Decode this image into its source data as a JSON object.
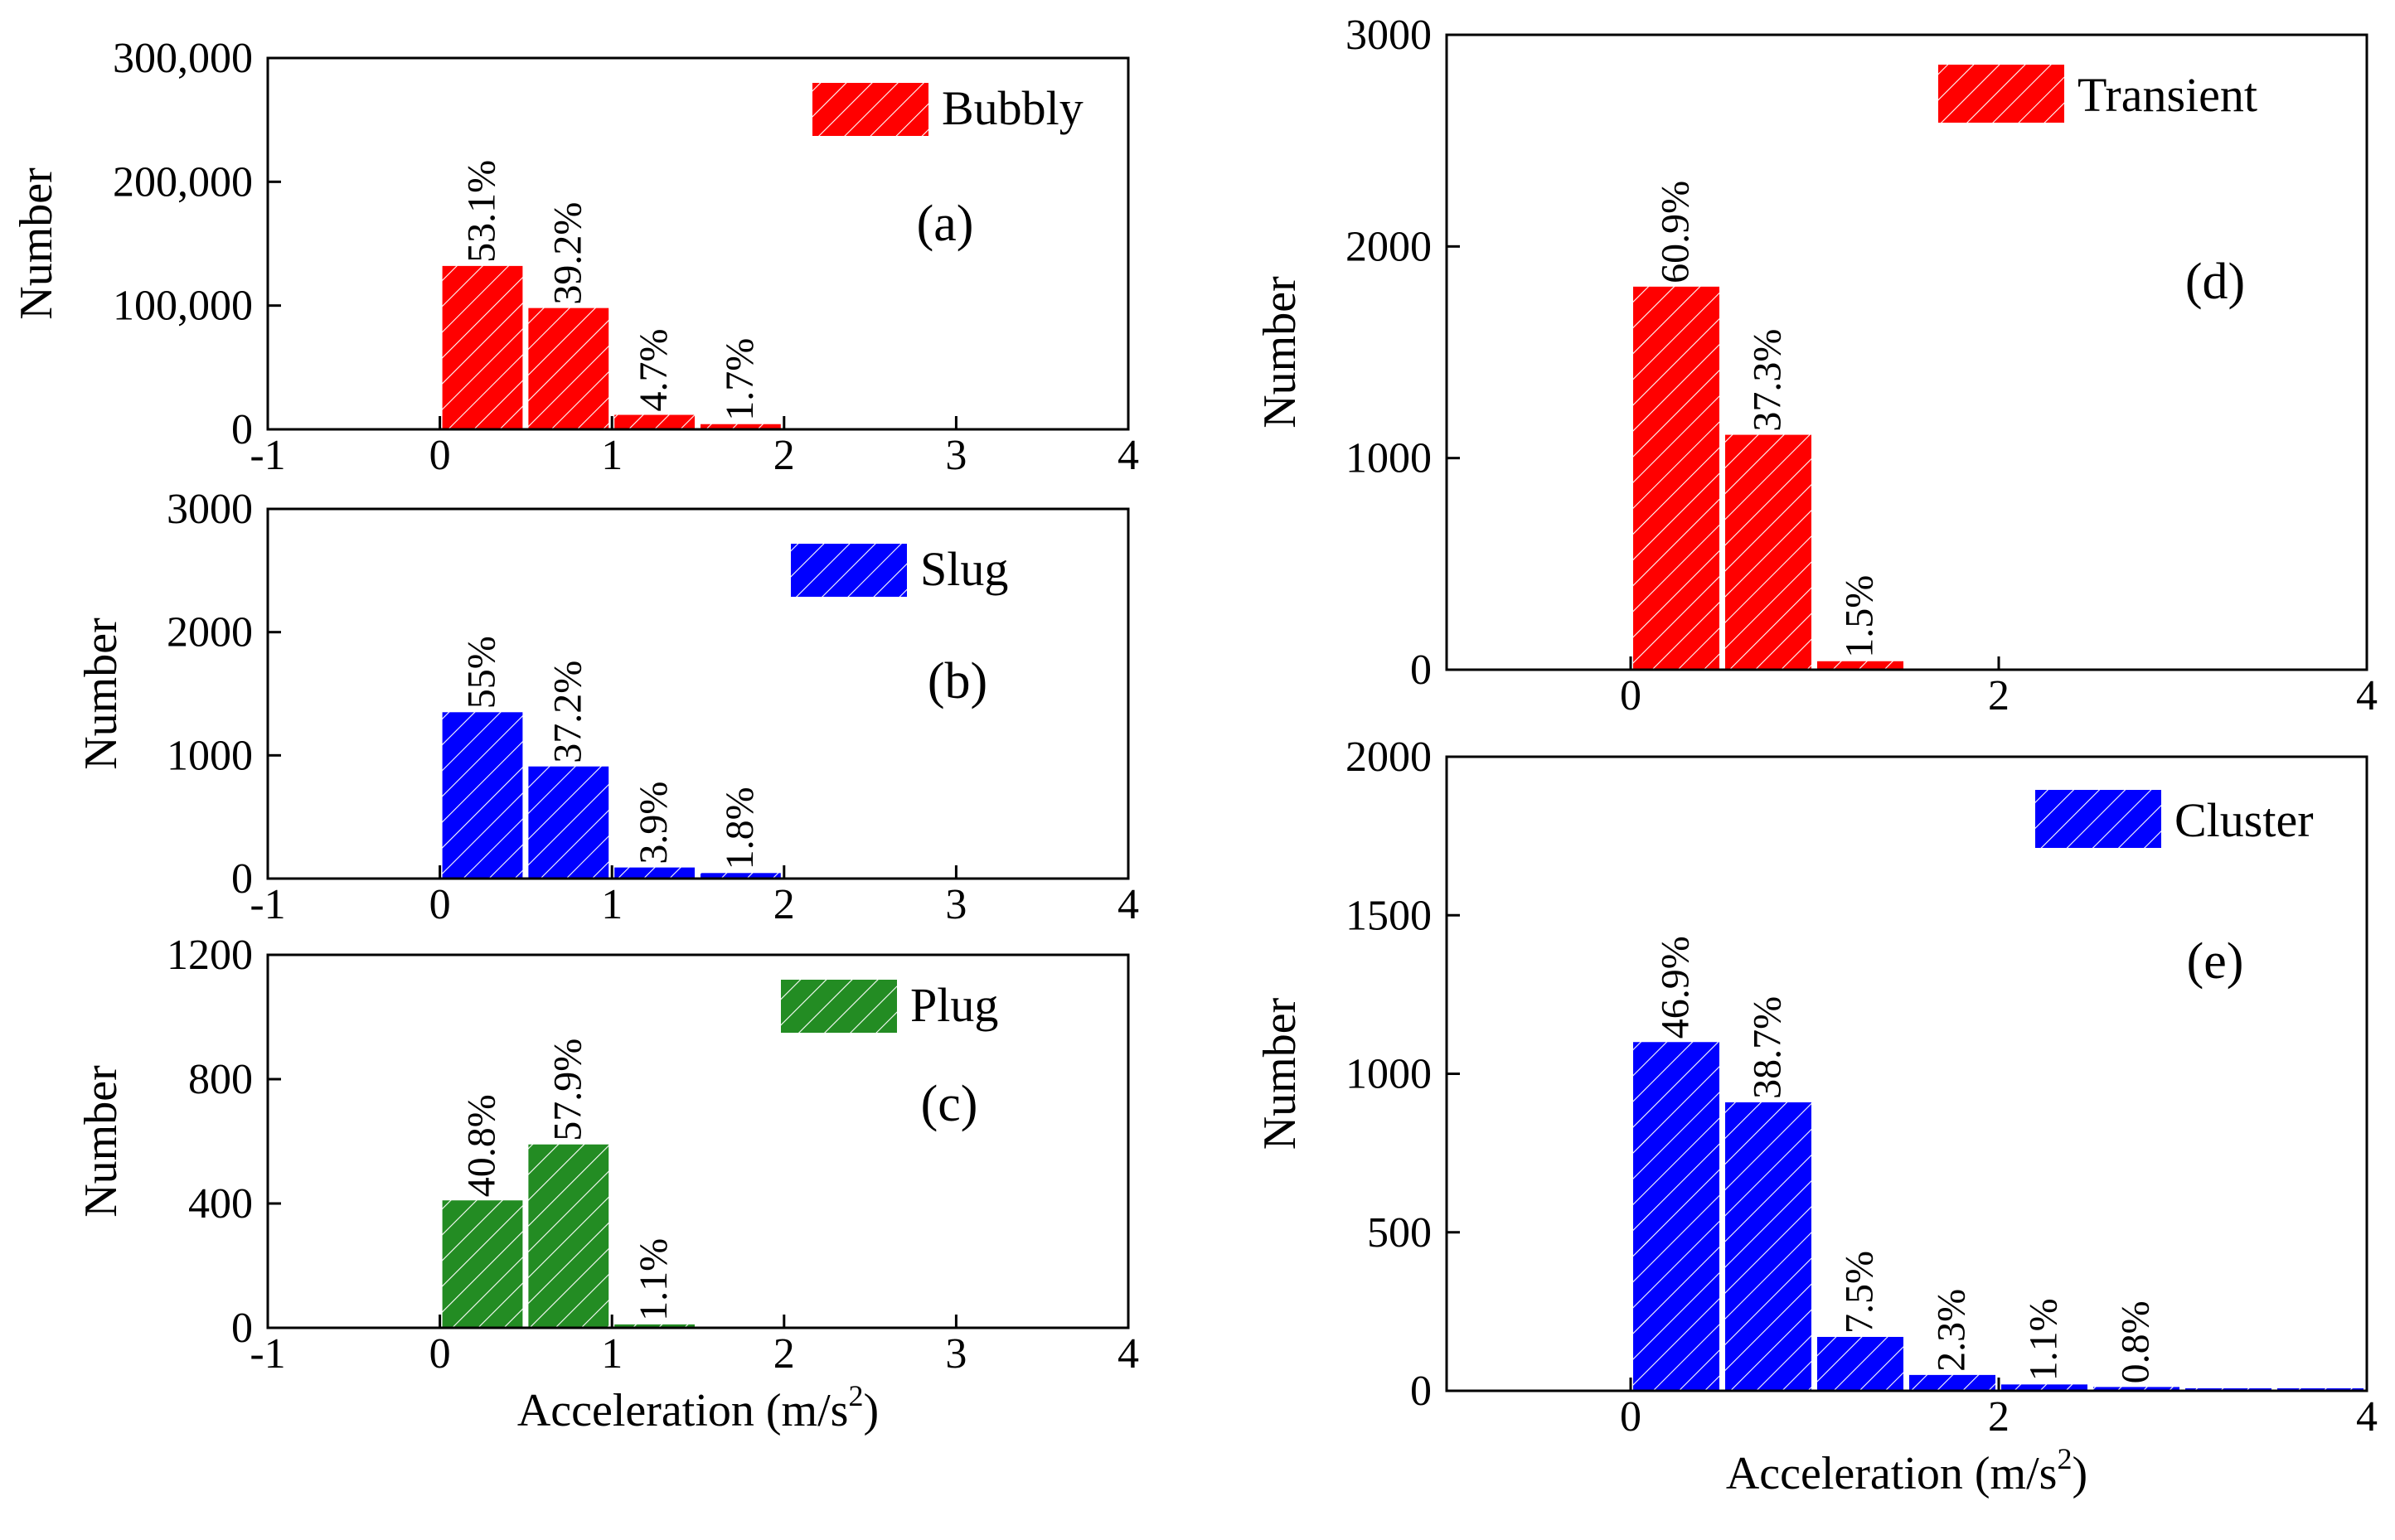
{
  "chart_data": [
    {
      "id": "a",
      "type": "bar",
      "panel_label": "(a)",
      "legend": "Bubbly",
      "color": "#ff0000",
      "ylabel": "Number",
      "xlabel": "",
      "xlim": [
        -1,
        4
      ],
      "ylim": [
        0,
        300000
      ],
      "xticks": [
        -1,
        0,
        1,
        2,
        3,
        4
      ],
      "xtick_labels": [
        "-1",
        "0",
        "1",
        "2",
        "3",
        "4"
      ],
      "yticks": [
        0,
        100000,
        200000,
        300000
      ],
      "ytick_labels": [
        "0",
        "100,000",
        "200,000",
        "300,000"
      ],
      "bins": [
        [
          0,
          0.5
        ],
        [
          0.5,
          1.0
        ],
        [
          1.0,
          1.5
        ],
        [
          1.5,
          2.0
        ]
      ],
      "values": [
        132000,
        98000,
        11700,
        4200
      ],
      "labels": [
        "53.1%",
        "39.2%",
        "4.7%",
        "1.7%"
      ]
    },
    {
      "id": "b",
      "type": "bar",
      "panel_label": "(b)",
      "legend": "Slug",
      "color": "#0000ff",
      "ylabel": "Number",
      "xlabel": "",
      "xlim": [
        -1,
        4
      ],
      "ylim": [
        0,
        3000
      ],
      "xticks": [
        -1,
        0,
        1,
        2,
        3,
        4
      ],
      "xtick_labels": [
        "-1",
        "0",
        "1",
        "2",
        "3",
        "4"
      ],
      "yticks": [
        0,
        1000,
        2000,
        3000
      ],
      "ytick_labels": [
        "0",
        "1000",
        "2000",
        "3000"
      ],
      "bins": [
        [
          0,
          0.5
        ],
        [
          0.5,
          1.0
        ],
        [
          1.0,
          1.5
        ],
        [
          1.5,
          2.0
        ]
      ],
      "values": [
        1350,
        910,
        90,
        45
      ],
      "labels": [
        "55%",
        "37.2%",
        "3.9%",
        "1.8%"
      ]
    },
    {
      "id": "c",
      "type": "bar",
      "panel_label": "(c)",
      "legend": "Plug",
      "color": "#238c23",
      "ylabel": "Number",
      "xlabel": "Acceleration (m/s²)",
      "xlim": [
        -1,
        4
      ],
      "ylim": [
        0,
        1200
      ],
      "xticks": [
        -1,
        0,
        1,
        2,
        3,
        4
      ],
      "xtick_labels": [
        "-1",
        "0",
        "1",
        "2",
        "3",
        "4"
      ],
      "yticks": [
        0,
        400,
        800,
        1200
      ],
      "ytick_labels": [
        "0",
        "400",
        "800",
        "1200"
      ],
      "bins": [
        [
          0,
          0.5
        ],
        [
          0.5,
          1.0
        ],
        [
          1.0,
          1.5
        ]
      ],
      "values": [
        410,
        590,
        11
      ],
      "labels": [
        "40.8%",
        "57.9%",
        "1.1%"
      ]
    },
    {
      "id": "d",
      "type": "bar",
      "panel_label": "(d)",
      "legend": "Transient",
      "color": "#ff0000",
      "ylabel": "Number",
      "xlabel": "",
      "xlim": [
        -1,
        4
      ],
      "ylim": [
        0,
        3000
      ],
      "xticks": [
        0,
        2,
        4
      ],
      "xtick_labels": [
        "0",
        "2",
        "4"
      ],
      "yticks": [
        0,
        1000,
        2000,
        3000
      ],
      "ytick_labels": [
        "0",
        "1000",
        "2000",
        "3000"
      ],
      "bins": [
        [
          0,
          0.5
        ],
        [
          0.5,
          1.0
        ],
        [
          1.0,
          1.5
        ]
      ],
      "values": [
        1810,
        1110,
        40
      ],
      "labels": [
        "60.9%",
        "37.3%",
        "1.5%"
      ]
    },
    {
      "id": "e",
      "type": "bar",
      "panel_label": "(e)",
      "legend": "Cluster",
      "color": "#0000ff",
      "ylabel": "Number",
      "xlabel": "Acceleration (m/s²)",
      "xlim": [
        -1,
        4
      ],
      "ylim": [
        0,
        2000
      ],
      "xticks": [
        0,
        2,
        4
      ],
      "xtick_labels": [
        "0",
        "2",
        "4"
      ],
      "yticks": [
        0,
        500,
        1000,
        1500,
        2000
      ],
      "ytick_labels": [
        "0",
        "500",
        "1000",
        "1500",
        "2000"
      ],
      "bins": [
        [
          0,
          0.5
        ],
        [
          0.5,
          1.0
        ],
        [
          1.0,
          1.5
        ],
        [
          1.5,
          2.0
        ],
        [
          2.0,
          2.5
        ],
        [
          2.5,
          3.0
        ],
        [
          3.0,
          3.5
        ],
        [
          3.5,
          4.0
        ]
      ],
      "values": [
        1100,
        910,
        170,
        50,
        20,
        12,
        7,
        5
      ],
      "labels": [
        "46.9%",
        "38.7%",
        "7.5%",
        "2.3%",
        "1.1%",
        "0.8%",
        "",
        ""
      ]
    }
  ]
}
